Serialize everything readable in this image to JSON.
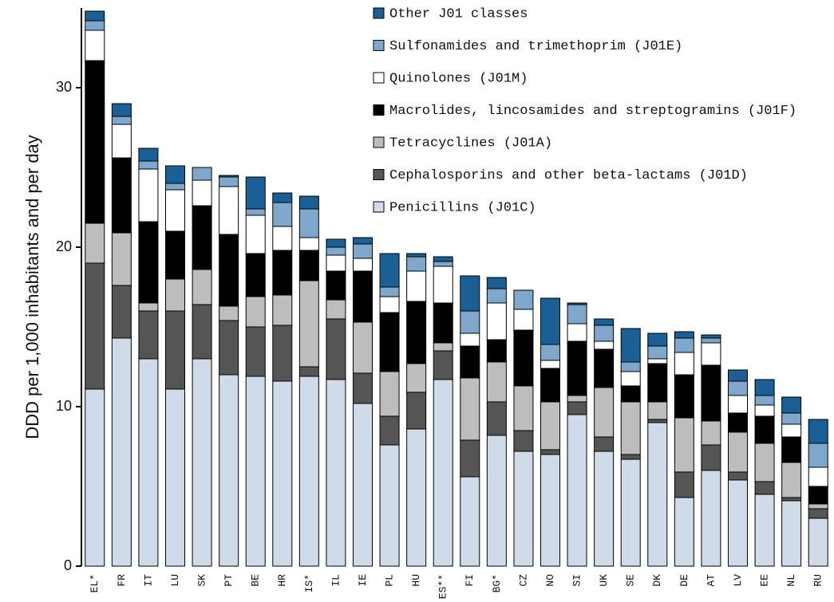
{
  "chart_data": {
    "type": "stacked_bar",
    "y_label": "DDD per 1,000 inhabitants and per day",
    "categories": [
      "EL*",
      "FR",
      "IT",
      "LU",
      "SK",
      "PT",
      "BE",
      "HR",
      "IS*",
      "IL",
      "IE",
      "PL",
      "HU",
      "ES**",
      "FI",
      "BG*",
      "CZ",
      "NO",
      "SI",
      "UK",
      "SE",
      "DK",
      "DE",
      "AT",
      "LV",
      "EE",
      "NL",
      "RU"
    ],
    "series": [
      {
        "name": "Penicillins (J01C)",
        "color": "#cfdbe8",
        "values": [
          11.1,
          14.3,
          13.0,
          11.1,
          13.0,
          12.0,
          11.9,
          11.6,
          11.9,
          11.7,
          10.2,
          7.6,
          8.6,
          11.7,
          5.6,
          8.2,
          7.2,
          7.0,
          9.5,
          7.2,
          6.7,
          9.0,
          4.3,
          6.0,
          5.4,
          4.5,
          4.1,
          3.0
        ]
      },
      {
        "name": "Cephalosporins and other beta-lactams (J01D)",
        "color": "#555555",
        "values": [
          7.9,
          3.3,
          3.0,
          4.9,
          3.4,
          3.4,
          3.1,
          3.5,
          0.6,
          3.8,
          1.9,
          1.8,
          2.3,
          1.8,
          2.3,
          2.1,
          1.3,
          0.3,
          0.8,
          0.9,
          0.3,
          0.2,
          1.6,
          1.6,
          0.5,
          0.8,
          0.2,
          0.6
        ]
      },
      {
        "name": "Tetracyclines (J01A)",
        "color": "#bdbdbd",
        "values": [
          2.5,
          3.3,
          0.5,
          2.0,
          2.2,
          0.9,
          1.9,
          1.9,
          5.4,
          1.2,
          3.2,
          2.8,
          1.8,
          0.5,
          3.9,
          2.5,
          2.8,
          3.0,
          0.4,
          3.1,
          3.3,
          1.1,
          3.4,
          1.5,
          2.5,
          2.4,
          2.2,
          0.3
        ]
      },
      {
        "name": "Macrolides, lincosamides and streptogramins (J01F)",
        "color": "#000000",
        "values": [
          10.2,
          4.7,
          5.1,
          3.0,
          4.0,
          4.5,
          2.7,
          2.8,
          1.9,
          1.8,
          3.2,
          3.7,
          3.9,
          2.5,
          2.0,
          1.4,
          3.5,
          2.1,
          3.4,
          2.4,
          1.0,
          2.4,
          2.7,
          3.5,
          1.2,
          1.7,
          1.6,
          1.1
        ]
      },
      {
        "name": "Quinolones (J01M)",
        "color": "#ffffff",
        "values": [
          1.9,
          2.1,
          3.3,
          2.6,
          1.6,
          3.0,
          2.4,
          1.5,
          0.8,
          1.0,
          0.8,
          1.0,
          1.9,
          2.3,
          0.8,
          2.3,
          1.3,
          0.5,
          1.1,
          0.5,
          0.9,
          0.3,
          1.4,
          1.4,
          1.1,
          0.7,
          0.8,
          1.2
        ]
      },
      {
        "name": "Sulfonamides and trimethoprim (J01E)",
        "color": "#7fa7cc",
        "values": [
          0.6,
          0.5,
          0.5,
          0.4,
          0.8,
          0.6,
          0.4,
          1.5,
          1.8,
          0.5,
          0.9,
          0.6,
          0.9,
          0.3,
          1.4,
          0.9,
          1.2,
          1.0,
          1.2,
          1.0,
          0.6,
          0.8,
          0.9,
          0.3,
          0.9,
          0.6,
          0.7,
          1.5
        ]
      },
      {
        "name": "Other J01 classes",
        "color": "#1a5f96",
        "values": [
          0.6,
          0.8,
          0.8,
          1.1,
          0,
          0.1,
          2.0,
          0.6,
          0.8,
          0.5,
          0.4,
          2.1,
          0.2,
          0.3,
          2.2,
          0.7,
          0,
          2.9,
          0.1,
          0.4,
          2.1,
          0.8,
          0.4,
          0.2,
          0.7,
          1.0,
          1.0,
          1.5
        ]
      }
    ],
    "ylim": [
      0,
      35
    ],
    "yticks": [
      0,
      10,
      20,
      30
    ],
    "legend": "upper right",
    "grid": false
  }
}
